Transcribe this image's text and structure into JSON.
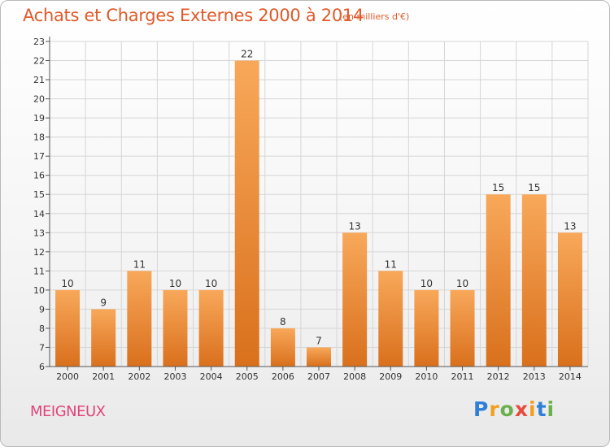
{
  "title": "Achats et Charges Externes 2000 à 2014",
  "subtitle": "(en milliers d'€)",
  "commune": "MEIGNEUX",
  "logo": {
    "letters": [
      "P",
      "r",
      "o",
      "x",
      "i",
      "t",
      "i"
    ],
    "colors": [
      "#2f7fd8",
      "#f0a020",
      "#6ab04c",
      "#e84b3c",
      "#f0a020",
      "#2f7fd8",
      "#6ab04c"
    ]
  },
  "colors": {
    "bar_light": "#f8a85a",
    "bar_dark": "#d9701c",
    "accent": "#e05a2a"
  },
  "chart_data": {
    "type": "bar",
    "categories": [
      "2000",
      "2001",
      "2002",
      "2003",
      "2004",
      "2005",
      "2006",
      "2007",
      "2008",
      "2009",
      "2010",
      "2011",
      "2012",
      "2013",
      "2014"
    ],
    "values": [
      10,
      9,
      11,
      10,
      10,
      22,
      8,
      7,
      13,
      11,
      10,
      10,
      15,
      15,
      13
    ],
    "title": "Achats et Charges Externes 2000 à 2014",
    "ylim": [
      6,
      23
    ],
    "yticks": [
      6,
      7,
      8,
      9,
      10,
      11,
      12,
      13,
      14,
      15,
      16,
      17,
      18,
      19,
      20,
      21,
      22,
      23
    ],
    "grid": true,
    "legend": "none"
  }
}
